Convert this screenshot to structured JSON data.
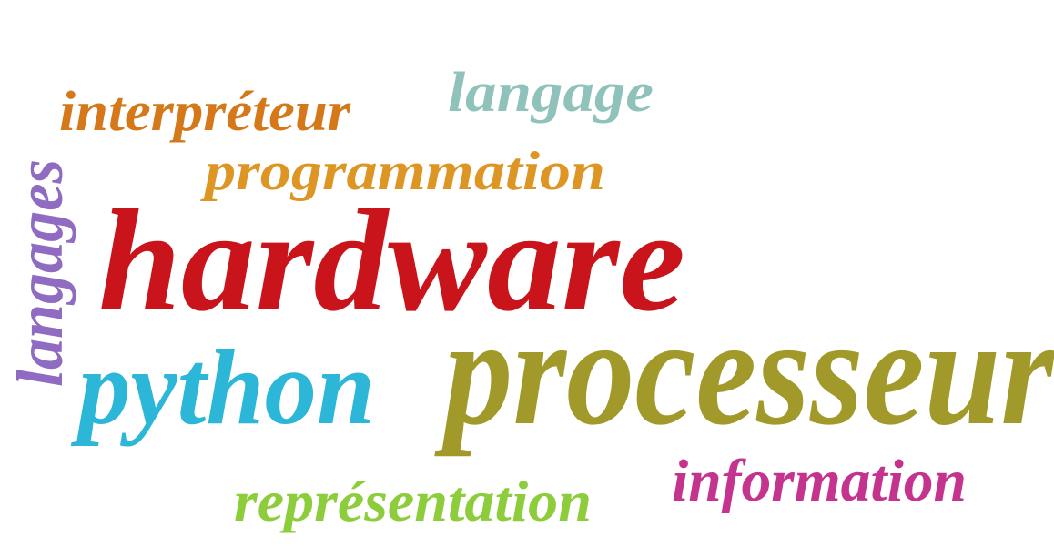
{
  "words": [
    {
      "text": "interpréteur",
      "color": "#d4781a"
    },
    {
      "text": "langage",
      "color": "#8fc2ba"
    },
    {
      "text": "programmation",
      "color": "#dd9524"
    },
    {
      "text": "langages",
      "color": "#8f6cc2"
    },
    {
      "text": "hardware",
      "color": "#c8141a"
    },
    {
      "text": "python",
      "color": "#2cb6d8"
    },
    {
      "text": "processeur",
      "color": "#a19a2a"
    },
    {
      "text": "information",
      "color": "#c4338e"
    },
    {
      "text": "représentation",
      "color": "#8dcd3b"
    }
  ]
}
